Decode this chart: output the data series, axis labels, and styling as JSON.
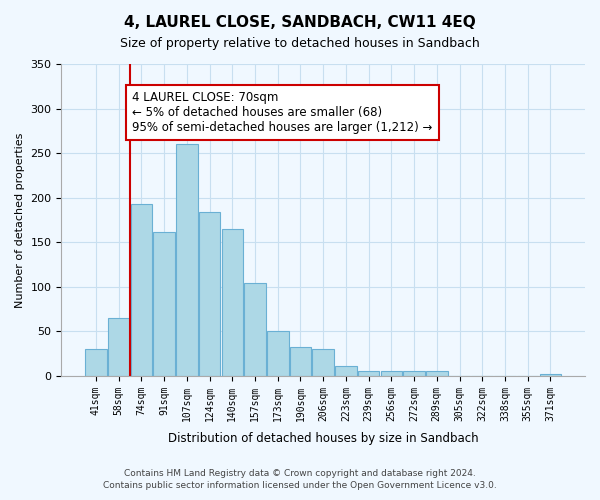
{
  "title": "4, LAUREL CLOSE, SANDBACH, CW11 4EQ",
  "subtitle": "Size of property relative to detached houses in Sandbach",
  "xlabel": "Distribution of detached houses by size in Sandbach",
  "ylabel": "Number of detached properties",
  "bar_labels": [
    "41sqm",
    "58sqm",
    "74sqm",
    "91sqm",
    "107sqm",
    "124sqm",
    "140sqm",
    "157sqm",
    "173sqm",
    "190sqm",
    "206sqm",
    "223sqm",
    "239sqm",
    "256sqm",
    "272sqm",
    "289sqm",
    "305sqm",
    "322sqm",
    "338sqm",
    "355sqm",
    "371sqm"
  ],
  "bar_heights": [
    30,
    65,
    193,
    162,
    260,
    184,
    165,
    104,
    50,
    33,
    30,
    11,
    5,
    5,
    5,
    5,
    0,
    0,
    0,
    0,
    2
  ],
  "bar_color": "#add8e6",
  "bar_edge_color": "#6ab0d4",
  "vline_x_pos": 1.5,
  "vline_color": "#cc0000",
  "annotation_text": "4 LAUREL CLOSE: 70sqm\n← 5% of detached houses are smaller (68)\n95% of semi-detached houses are larger (1,212) →",
  "annotation_box_color": "#ffffff",
  "annotation_box_edge": "#cc0000",
  "ylim": [
    0,
    350
  ],
  "yticks": [
    0,
    50,
    100,
    150,
    200,
    250,
    300,
    350
  ],
  "footer_line1": "Contains HM Land Registry data © Crown copyright and database right 2024.",
  "footer_line2": "Contains public sector information licensed under the Open Government Licence v3.0.",
  "background_color": "#f0f8ff",
  "grid_color": "#c8dff0"
}
